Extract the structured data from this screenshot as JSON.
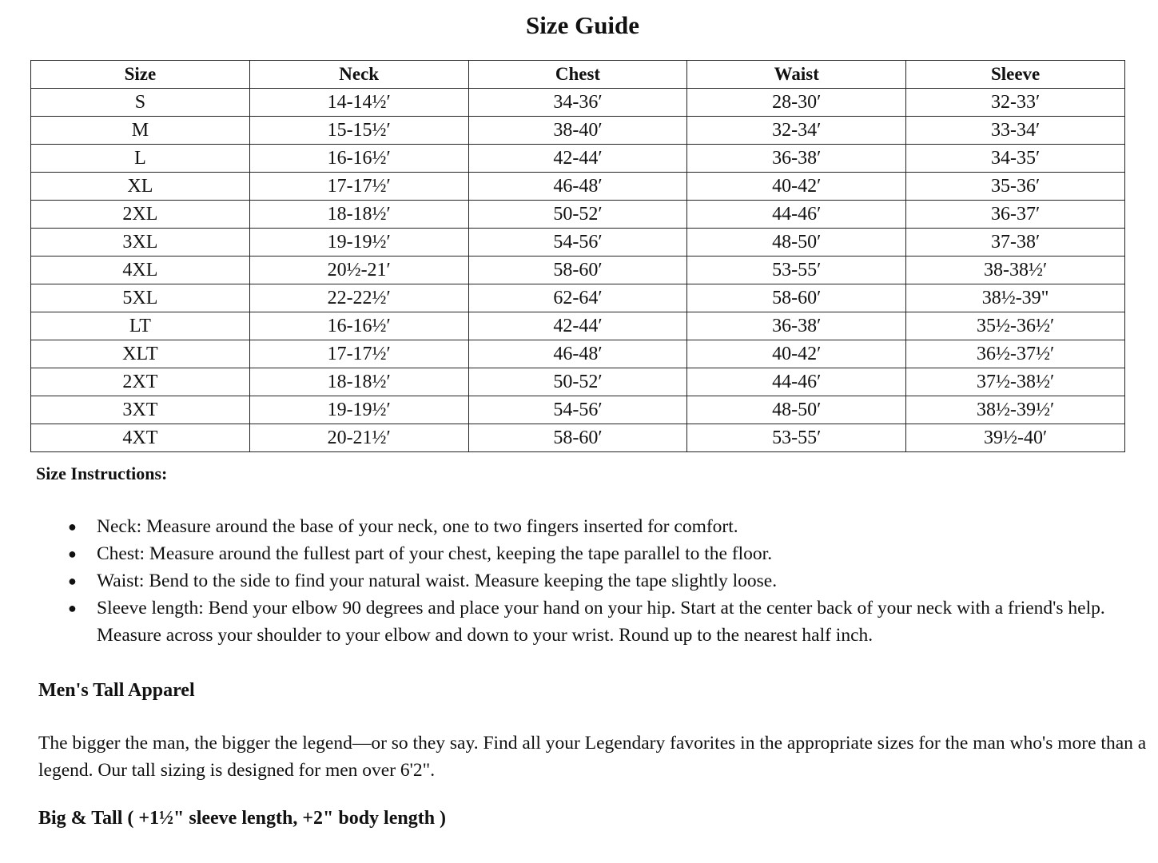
{
  "title": "Size Guide",
  "table": {
    "headers": [
      "Size",
      "Neck",
      "Chest",
      "Waist",
      "Sleeve"
    ],
    "rows": [
      [
        "S",
        "14-14½′",
        "34-36′",
        "28-30′",
        "32-33′"
      ],
      [
        "M",
        "15-15½′",
        "38-40′",
        "32-34′",
        "33-34′"
      ],
      [
        "L",
        "16-16½′",
        "42-44′",
        "36-38′",
        "34-35′"
      ],
      [
        "XL",
        "17-17½′",
        "46-48′",
        "40-42′",
        "35-36′"
      ],
      [
        "2XL",
        "18-18½′",
        "50-52′",
        "44-46′",
        "36-37′"
      ],
      [
        "3XL",
        "19-19½′",
        "54-56′",
        "48-50′",
        "37-38′"
      ],
      [
        "4XL",
        "20½-21′",
        "58-60′",
        "53-55′",
        "38-38½′"
      ],
      [
        "5XL",
        "22-22½′",
        "62-64′",
        "58-60′",
        "38½-39\""
      ],
      [
        "LT",
        "16-16½′",
        "42-44′",
        "36-38′",
        "35½-36½′"
      ],
      [
        "XLT",
        "17-17½′",
        "46-48′",
        "40-42′",
        "36½-37½′"
      ],
      [
        "2XT",
        "18-18½′",
        "50-52′",
        "44-46′",
        "37½-38½′"
      ],
      [
        "3XT",
        "19-19½′",
        "54-56′",
        "48-50′",
        "38½-39½′"
      ],
      [
        "4XT",
        "20-21½′",
        "58-60′",
        "53-55′",
        "39½-40′"
      ]
    ]
  },
  "instructions": {
    "heading": "Size Instructions:",
    "items": [
      "Neck: Measure around the base of your neck, one to two fingers inserted for comfort.",
      "Chest: Measure around the fullest part of your chest, keeping the tape parallel to the floor.",
      "Waist: Bend to the side to find your natural waist. Measure keeping the tape slightly loose.",
      "Sleeve length: Bend your elbow 90 degrees and place your hand on your hip. Start at the center back of your neck with a friend's help. Measure across your shoulder to your elbow and down to your wrist. Round up to the nearest half inch."
    ]
  },
  "tall": {
    "heading": "Men's Tall Apparel",
    "paragraph": "The bigger the man, the bigger the legend—or so they say. Find all your Legendary favorites in the appropriate sizes for the man who's more than a legend. Our tall sizing is designed for men over 6'2\"."
  },
  "big_tall": "Big & Tall ( +1½\" sleeve length, +2\" body length )"
}
